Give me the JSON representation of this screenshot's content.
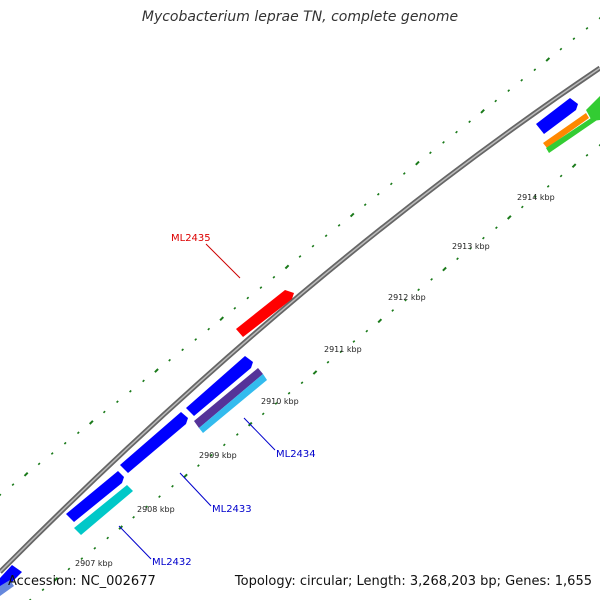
{
  "title": "Mycobacterium leprae TN, complete genome",
  "footer": {
    "accession": "Accession: NC_002677",
    "summary": "Topology: circular; Length: 3,268,203 bp; Genes: 1,655"
  },
  "ticks": [
    "2907 kbp",
    "2908 kbp",
    "2909 kbp",
    "2910 kbp",
    "2911 kbp",
    "2912 kbp",
    "2913 kbp",
    "2914 kbp"
  ],
  "gene_labels": {
    "ml2435": "ML2435",
    "ml2434": "ML2434",
    "ml2433": "ML2433",
    "ml2432": "ML2432"
  },
  "colors": {
    "forward_cds": "#0000ff",
    "highlight_cds": "#ff0000",
    "cyan_cds": "#00c8c8",
    "sky_cds": "#33bbee",
    "purple_cds": "#553399",
    "orange_cds": "#ff8800",
    "green_cds": "#33cc33",
    "backbone": "#888888",
    "gc_dots": "#1a7a1a",
    "label_blue": "#0000cc",
    "label_red": "#dd0000"
  }
}
